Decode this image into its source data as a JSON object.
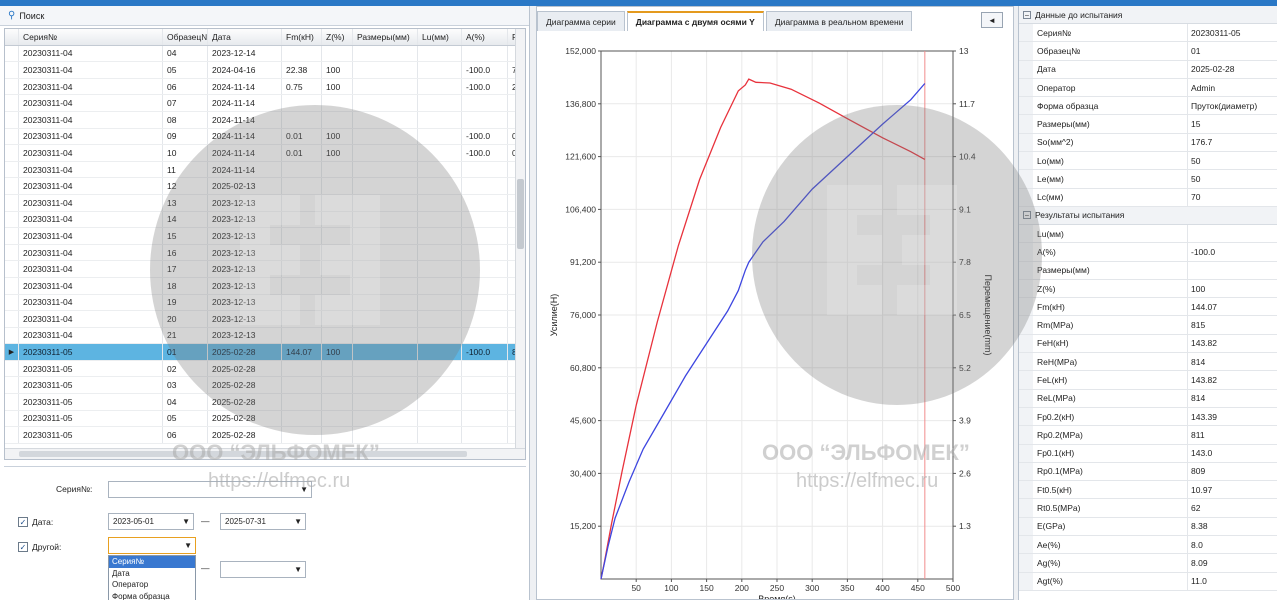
{
  "left": {
    "search_title": "Поиск",
    "columns": [
      "Серия№",
      "Образец№",
      "Дата",
      "Fm(кН)",
      "Z(%)",
      "Размеры(мм)",
      "Lu(мм)",
      "A(%)",
      "R"
    ],
    "rows": [
      [
        "20230311-04",
        "04",
        "2023-12-14",
        "",
        "",
        "",
        "",
        "",
        ""
      ],
      [
        "20230311-04",
        "05",
        "2024-04-16",
        "22.38",
        "100",
        "",
        "",
        "-100.0",
        "7"
      ],
      [
        "20230311-04",
        "06",
        "2024-11-14",
        "0.75",
        "100",
        "",
        "",
        "-100.0",
        "2"
      ],
      [
        "20230311-04",
        "07",
        "2024-11-14",
        "",
        "",
        "",
        "",
        "",
        ""
      ],
      [
        "20230311-04",
        "08",
        "2024-11-14",
        "",
        "",
        "",
        "",
        "",
        ""
      ],
      [
        "20230311-04",
        "09",
        "2024-11-14",
        "0.01",
        "100",
        "",
        "",
        "-100.0",
        "0"
      ],
      [
        "20230311-04",
        "10",
        "2024-11-14",
        "0.01",
        "100",
        "",
        "",
        "-100.0",
        "0"
      ],
      [
        "20230311-04",
        "11",
        "2024-11-14",
        "",
        "",
        "",
        "",
        "",
        ""
      ],
      [
        "20230311-04",
        "12",
        "2025-02-13",
        "",
        "",
        "",
        "",
        "",
        ""
      ],
      [
        "20230311-04",
        "13",
        "2023-12-13",
        "",
        "",
        "",
        "",
        "",
        ""
      ],
      [
        "20230311-04",
        "14",
        "2023-12-13",
        "",
        "",
        "",
        "",
        "",
        ""
      ],
      [
        "20230311-04",
        "15",
        "2023-12-13",
        "",
        "",
        "",
        "",
        "",
        ""
      ],
      [
        "20230311-04",
        "16",
        "2023-12-13",
        "",
        "",
        "",
        "",
        "",
        ""
      ],
      [
        "20230311-04",
        "17",
        "2023-12-13",
        "",
        "",
        "",
        "",
        "",
        ""
      ],
      [
        "20230311-04",
        "18",
        "2023-12-13",
        "",
        "",
        "",
        "",
        "",
        ""
      ],
      [
        "20230311-04",
        "19",
        "2023-12-13",
        "",
        "",
        "",
        "",
        "",
        ""
      ],
      [
        "20230311-04",
        "20",
        "2023-12-13",
        "",
        "",
        "",
        "",
        "",
        ""
      ],
      [
        "20230311-04",
        "21",
        "2023-12-13",
        "",
        "",
        "",
        "",
        "",
        ""
      ],
      [
        "20230311-05",
        "01",
        "2025-02-28",
        "144.07",
        "100",
        "",
        "",
        "-100.0",
        "8"
      ],
      [
        "20230311-05",
        "02",
        "2025-02-28",
        "",
        "",
        "",
        "",
        "",
        ""
      ],
      [
        "20230311-05",
        "03",
        "2025-02-28",
        "",
        "",
        "",
        "",
        "",
        ""
      ],
      [
        "20230311-05",
        "04",
        "2025-02-28",
        "",
        "",
        "",
        "",
        "",
        ""
      ],
      [
        "20230311-05",
        "05",
        "2025-02-28",
        "",
        "",
        "",
        "",
        "",
        ""
      ],
      [
        "20230311-05",
        "06",
        "2025-02-28",
        "",
        "",
        "",
        "",
        "",
        ""
      ]
    ],
    "selected_row": 18,
    "filter": {
      "series_label": "Серия№:",
      "series_value": "",
      "date_label": "Дата:",
      "date_from": "2023-05-01",
      "date_dash": "—",
      "date_to": "2025-07-31",
      "other_label": "Другой:",
      "other_value": "",
      "other_dash": "—",
      "other_options": [
        "Серия№",
        "Дата",
        "Оператор",
        "Форма образца"
      ]
    }
  },
  "middle": {
    "tabs": [
      "Диаграмма серии",
      "Диаграмма с двумя осями Y",
      "Диаграмма в реальном времени"
    ],
    "active_tab": 1,
    "tab_nav": "◄"
  },
  "chart_data": {
    "type": "line",
    "xlabel": "Время(s)",
    "ylabel": "Усилие(Н)",
    "ylabel2": "Перемещение(mm)",
    "xlim": [
      0,
      500
    ],
    "ylim": [
      0,
      152000
    ],
    "ylim2": [
      0,
      13
    ],
    "x_ticks": [
      50,
      100,
      150,
      200,
      250,
      300,
      350,
      400,
      450,
      500
    ],
    "y_ticks": [
      "15,200",
      "30,400",
      "45,600",
      "60,800",
      "76,000",
      "91,200",
      "106,400",
      "121,600",
      "136,800",
      "152,000"
    ],
    "y2_ticks": [
      "1.3",
      "2.6",
      "3.9",
      "5.2",
      "6.5",
      "7.8",
      "9.1",
      "10.4",
      "11.7",
      "13"
    ],
    "series": [
      {
        "axis": "left",
        "color": "#e8323c",
        "x": [
          0,
          5,
          15,
          30,
          50,
          80,
          110,
          140,
          170,
          195,
          205,
          210,
          220,
          240,
          270,
          310,
          350,
          400,
          440,
          460
        ],
        "y": [
          0,
          5000,
          16000,
          31000,
          50000,
          74000,
          96000,
          115000,
          130000,
          140500,
          142200,
          143900,
          143000,
          142800,
          141000,
          137000,
          132500,
          127000,
          123000,
          120800
        ]
      },
      {
        "axis": "right",
        "color": "#3d46e0",
        "x": [
          0,
          10,
          20,
          40,
          60,
          90,
          120,
          150,
          180,
          195,
          205,
          210,
          230,
          260,
          300,
          350,
          400,
          440,
          460
        ],
        "y": [
          0,
          0.8,
          1.5,
          2.4,
          3.2,
          4.1,
          5.0,
          5.8,
          6.6,
          7.1,
          7.6,
          7.8,
          8.3,
          8.8,
          9.6,
          10.4,
          11.2,
          11.8,
          12.2
        ]
      }
    ],
    "vline_x": 460,
    "vline_color": "#f28c8c"
  },
  "right": {
    "sections": [
      {
        "title": "Данные до испытания",
        "toggle": "–",
        "rows": [
          [
            "Серия№",
            "20230311-05"
          ],
          [
            "Образец№",
            "01"
          ],
          [
            "Дата",
            "2025-02-28"
          ],
          [
            "Оператор",
            "Admin"
          ],
          [
            "Форма образца",
            "Пруток(диаметр)"
          ],
          [
            "Размеры(мм)",
            "15"
          ],
          [
            "So(мм^2)",
            "176.7"
          ],
          [
            "Lo(мм)",
            "50"
          ],
          [
            "Le(мм)",
            "50"
          ],
          [
            "Lc(мм)",
            "70"
          ]
        ]
      },
      {
        "title": "Результаты испытания",
        "toggle": "–",
        "rows": [
          [
            "Lu(мм)",
            ""
          ],
          [
            "A(%)",
            "-100.0"
          ],
          [
            "Размеры(мм)",
            ""
          ],
          [
            "Z(%)",
            "100"
          ],
          [
            "Fm(кН)",
            "144.07"
          ],
          [
            "Rm(MPa)",
            "815"
          ],
          [
            "FeH(кН)",
            "143.82"
          ],
          [
            "ReH(MPa)",
            "814"
          ],
          [
            "FeL(кН)",
            "143.82"
          ],
          [
            "ReL(MPa)",
            "814"
          ],
          [
            "Fp0.2(кН)",
            "143.39"
          ],
          [
            "Rp0.2(MPa)",
            "811"
          ],
          [
            "Fp0.1(кН)",
            "143.0"
          ],
          [
            "Rp0.1(MPa)",
            "809"
          ],
          [
            "Ft0.5(кН)",
            "10.97"
          ],
          [
            "Rt0.5(MPa)",
            "62"
          ],
          [
            "E(GPa)",
            "8.38"
          ],
          [
            "Ae(%)",
            "8.0"
          ],
          [
            "Ag(%)",
            "8.09"
          ],
          [
            "Agt(%)",
            "11.0"
          ]
        ]
      }
    ]
  },
  "watermark": {
    "company": "ООО “ЭЛЬФОМЕК”",
    "url": "https://elfmec.ru"
  }
}
